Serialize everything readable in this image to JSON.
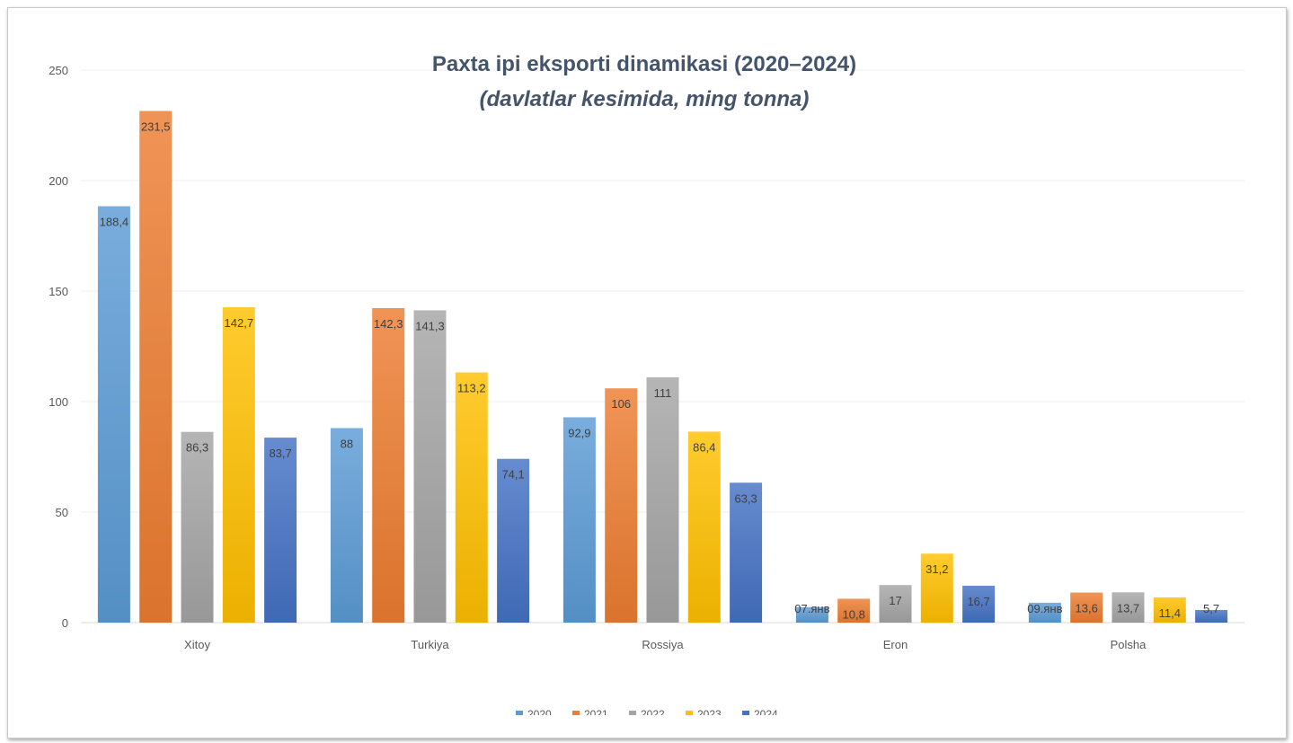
{
  "chart_data": {
    "type": "bar",
    "title": "Paxta ipi eksporti dinamikasi (2020–2024)",
    "subtitle": "(davlatlar kesimida, ming tonna)",
    "categories": [
      "Xitoy",
      "Turkiya",
      "Rossiya",
      "Eron",
      "Polsha"
    ],
    "series": [
      {
        "name": "2020",
        "color": "#5b9bd5",
        "values": [
          188.4,
          88,
          92.9,
          7,
          9
        ],
        "labels": [
          "188,4",
          "88",
          "92,9",
          "07.янв",
          "09.янв"
        ]
      },
      {
        "name": "2021",
        "color": "#ed7d31",
        "values": [
          231.5,
          142.3,
          106,
          10.8,
          13.6
        ],
        "labels": [
          "231,5",
          "142,3",
          "106",
          "10,8",
          "13,6"
        ]
      },
      {
        "name": "2022",
        "color": "#a5a5a5",
        "values": [
          86.3,
          141.3,
          111,
          17,
          13.7
        ],
        "labels": [
          "86,3",
          "141,3",
          "111",
          "17",
          "13,7"
        ]
      },
      {
        "name": "2023",
        "color": "#ffc000",
        "values": [
          142.7,
          113.2,
          86.4,
          31.2,
          11.4
        ],
        "labels": [
          "142,7",
          "113,2",
          "86,4",
          "31,2",
          "11,4"
        ]
      },
      {
        "name": "2024",
        "color": "#4472c4",
        "values": [
          83.7,
          74.1,
          63.3,
          16.7,
          5.7
        ],
        "labels": [
          "83,7",
          "74,1",
          "63,3",
          "16,7",
          "5,7"
        ]
      }
    ],
    "yticks": [
      "0",
      "50",
      "100",
      "150",
      "200",
      "250"
    ],
    "ylim": [
      0,
      250
    ],
    "grid": true,
    "legend_position": "bottom"
  }
}
